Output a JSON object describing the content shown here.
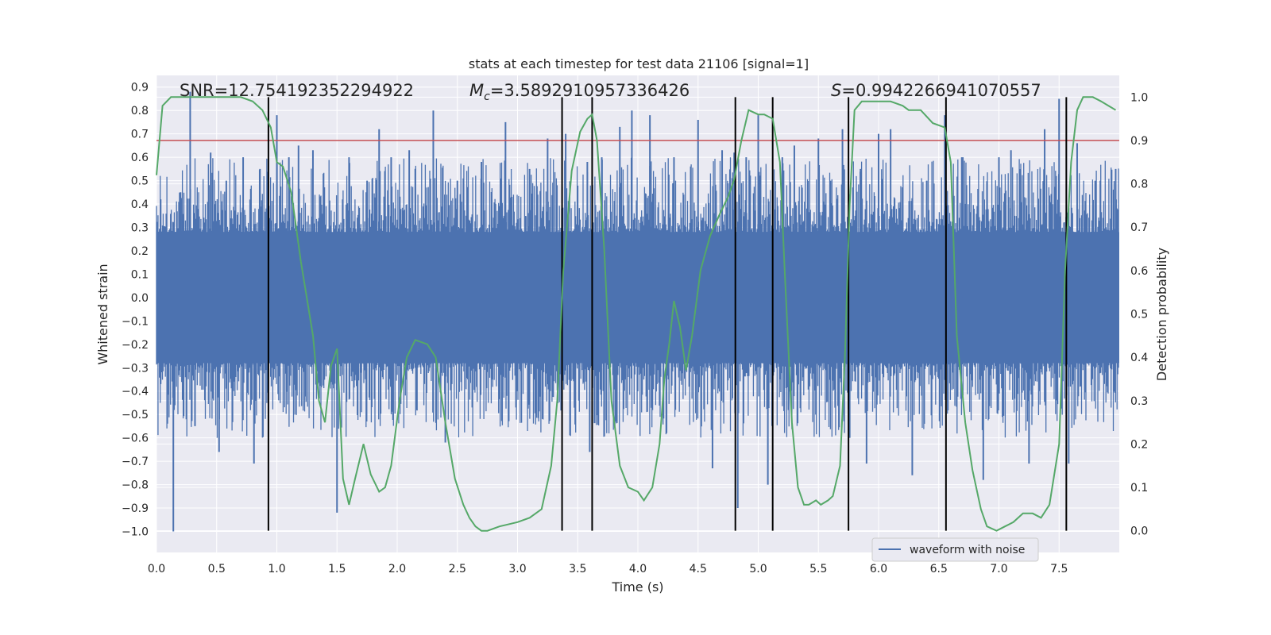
{
  "chart_data": {
    "type": "line",
    "title": "stats at each timestep for test data 21106 [signal=1]",
    "xlabel": "Time (s)",
    "ylabel": "Whitened strain",
    "y2label": "Detection probability",
    "xlim": [
      0.0,
      8.0
    ],
    "ylim": [
      -1.09,
      0.95
    ],
    "y2lim": [
      -0.05,
      1.05
    ],
    "grid": true,
    "legend_placement": "lower right",
    "x_ticks": [
      "0.0",
      "0.5",
      "1.0",
      "1.5",
      "2.0",
      "2.5",
      "3.0",
      "3.5",
      "4.0",
      "4.5",
      "5.0",
      "5.5",
      "6.0",
      "6.5",
      "7.0",
      "7.5"
    ],
    "y_ticks": [
      "0.9",
      "0.8",
      "0.7",
      "0.6",
      "0.5",
      "0.4",
      "0.3",
      "0.2",
      "0.1",
      "0.0",
      "−0.1",
      "−0.2",
      "−0.3",
      "−0.4",
      "−0.5",
      "−0.6",
      "−0.7",
      "−0.8",
      "−0.9",
      "−1.0"
    ],
    "y2_ticks": [
      "1.0",
      "0.9",
      "0.8",
      "0.7",
      "0.6",
      "0.5",
      "0.4",
      "0.3",
      "0.2",
      "0.1",
      "0.0"
    ],
    "annotations": {
      "snr": "SNR=12.754192352294922",
      "mc_symbol": "M",
      "mc_subscript": "c",
      "mc_value": "=3.5892910957336426",
      "s_symbol": "S",
      "s_value": "=0.9942266941070557"
    },
    "threshold_line": {
      "y2": 0.9,
      "color": "#c44e52"
    },
    "vertical_lines_x": [
      0.93,
      3.37,
      3.62,
      4.81,
      5.12,
      5.75,
      6.56,
      7.56
    ],
    "waveform": {
      "name": "waveform with noise",
      "color": "#4c72b0",
      "typical_range": [
        -0.28,
        0.28
      ],
      "peaks": [
        [
          0.07,
          0.3
        ],
        [
          0.14,
          -1.0
        ],
        [
          0.2,
          0.45
        ],
        [
          0.28,
          0.88
        ],
        [
          0.32,
          -0.55
        ],
        [
          0.45,
          0.62
        ],
        [
          0.52,
          -0.66
        ],
        [
          0.58,
          0.5
        ],
        [
          0.72,
          0.6
        ],
        [
          0.81,
          -0.71
        ],
        [
          0.86,
          0.55
        ],
        [
          1.0,
          0.78
        ],
        [
          1.1,
          0.6
        ],
        [
          1.18,
          0.65
        ],
        [
          1.3,
          0.63
        ],
        [
          1.5,
          -0.92
        ],
        [
          1.6,
          0.6
        ],
        [
          1.75,
          0.5
        ],
        [
          1.85,
          0.72
        ],
        [
          1.95,
          0.6
        ],
        [
          2.1,
          0.63
        ],
        [
          2.3,
          0.8
        ],
        [
          2.4,
          -0.62
        ],
        [
          2.5,
          0.5
        ],
        [
          2.7,
          0.58
        ],
        [
          2.9,
          0.75
        ],
        [
          3.1,
          0.55
        ],
        [
          3.25,
          0.68
        ],
        [
          3.4,
          0.7
        ],
        [
          3.58,
          0.58
        ],
        [
          3.6,
          -0.66
        ],
        [
          3.7,
          0.6
        ],
        [
          3.85,
          0.73
        ],
        [
          3.95,
          0.8
        ],
        [
          4.1,
          0.78
        ],
        [
          4.3,
          0.6
        ],
        [
          4.5,
          0.76
        ],
        [
          4.62,
          -0.73
        ],
        [
          4.7,
          0.63
        ],
        [
          4.8,
          0.62
        ],
        [
          4.83,
          -0.9
        ],
        [
          4.9,
          0.6
        ],
        [
          5.0,
          0.78
        ],
        [
          5.08,
          -0.8
        ],
        [
          5.2,
          0.6
        ],
        [
          5.3,
          0.65
        ],
        [
          5.5,
          0.68
        ],
        [
          5.6,
          0.5
        ],
        [
          5.7,
          0.72
        ],
        [
          5.76,
          -0.6
        ],
        [
          5.85,
          0.55
        ],
        [
          5.9,
          -0.71
        ],
        [
          6.0,
          0.7
        ],
        [
          6.1,
          0.72
        ],
        [
          6.28,
          -0.76
        ],
        [
          6.4,
          0.5
        ],
        [
          6.55,
          0.78
        ],
        [
          6.7,
          0.6
        ],
        [
          6.87,
          -0.78
        ],
        [
          7.0,
          0.6
        ],
        [
          7.1,
          0.63
        ],
        [
          7.25,
          -0.71
        ],
        [
          7.38,
          0.72
        ],
        [
          7.5,
          0.85
        ],
        [
          7.58,
          -0.71
        ],
        [
          7.65,
          0.66
        ],
        [
          7.8,
          0.5
        ],
        [
          7.97,
          0.55
        ]
      ]
    },
    "detection_probability": {
      "color": "#55a868",
      "x": [
        0.0,
        0.05,
        0.12,
        0.2,
        0.3,
        0.5,
        0.7,
        0.8,
        0.88,
        0.95,
        1.0,
        1.05,
        1.12,
        1.2,
        1.3,
        1.35,
        1.4,
        1.45,
        1.5,
        1.55,
        1.6,
        1.65,
        1.72,
        1.78,
        1.85,
        1.9,
        1.95,
        2.02,
        2.08,
        2.15,
        2.25,
        2.32,
        2.4,
        2.48,
        2.55,
        2.6,
        2.65,
        2.7,
        2.75,
        2.85,
        3.0,
        3.1,
        3.2,
        3.28,
        3.33,
        3.38,
        3.45,
        3.52,
        3.58,
        3.62,
        3.66,
        3.72,
        3.78,
        3.85,
        3.92,
        4.0,
        4.05,
        4.12,
        4.18,
        4.22,
        4.26,
        4.3,
        4.35,
        4.4,
        4.45,
        4.52,
        4.6,
        4.68,
        4.75,
        4.8,
        4.86,
        4.92,
        5.0,
        5.05,
        5.12,
        5.18,
        5.22,
        5.28,
        5.33,
        5.38,
        5.42,
        5.48,
        5.52,
        5.58,
        5.62,
        5.68,
        5.72,
        5.76,
        5.8,
        5.86,
        5.95,
        6.1,
        6.2,
        6.25,
        6.35,
        6.45,
        6.55,
        6.6,
        6.65,
        6.72,
        6.78,
        6.85,
        6.9,
        6.98,
        7.05,
        7.12,
        7.2,
        7.28,
        7.35,
        7.42,
        7.5,
        7.55,
        7.6,
        7.65,
        7.7,
        7.78,
        7.85,
        7.97
      ],
      "y": [
        0.82,
        0.98,
        1.0,
        1.0,
        1.0,
        1.0,
        1.0,
        0.99,
        0.97,
        0.93,
        0.85,
        0.84,
        0.78,
        0.62,
        0.45,
        0.3,
        0.25,
        0.38,
        0.42,
        0.12,
        0.06,
        0.12,
        0.2,
        0.13,
        0.09,
        0.1,
        0.15,
        0.3,
        0.4,
        0.44,
        0.43,
        0.4,
        0.25,
        0.12,
        0.06,
        0.03,
        0.01,
        0.0,
        0.0,
        0.01,
        0.02,
        0.03,
        0.05,
        0.15,
        0.3,
        0.6,
        0.83,
        0.92,
        0.95,
        0.96,
        0.9,
        0.65,
        0.3,
        0.15,
        0.1,
        0.09,
        0.07,
        0.1,
        0.2,
        0.35,
        0.43,
        0.53,
        0.47,
        0.37,
        0.45,
        0.6,
        0.68,
        0.73,
        0.77,
        0.81,
        0.9,
        0.97,
        0.96,
        0.96,
        0.95,
        0.85,
        0.6,
        0.25,
        0.1,
        0.06,
        0.06,
        0.07,
        0.06,
        0.07,
        0.08,
        0.15,
        0.4,
        0.75,
        0.97,
        0.99,
        0.99,
        0.99,
        0.98,
        0.97,
        0.97,
        0.94,
        0.93,
        0.85,
        0.45,
        0.25,
        0.14,
        0.05,
        0.01,
        0.0,
        0.01,
        0.02,
        0.04,
        0.04,
        0.03,
        0.06,
        0.2,
        0.6,
        0.85,
        0.97,
        1.0,
        1.0,
        0.99,
        0.97
      ]
    }
  }
}
